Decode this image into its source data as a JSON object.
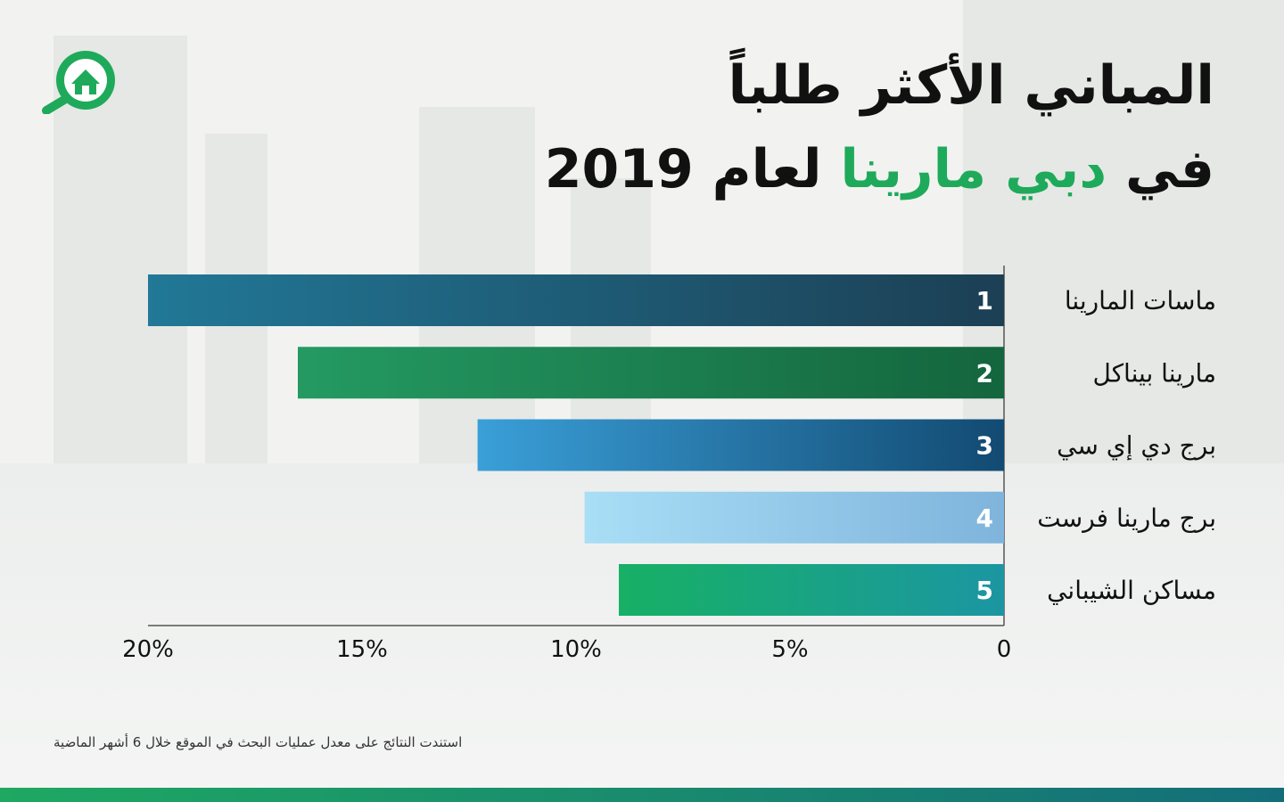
{
  "title": {
    "line1": "المباني الأكثر طلباً",
    "line2_prefix": "في",
    "line2_accent": "دبي مارينا",
    "line2_suffix": "لعام 2019"
  },
  "logo": {
    "icon": "home-search-icon",
    "color": "#1eaa5a"
  },
  "footnote": "استندت النتائج على معدل عمليات البحث في الموقع خلال 6 أشهر الماضية",
  "colors": {
    "accent": "#1eaa5a",
    "bottom_bar_start": "#1ea862",
    "bottom_bar_end": "#146e7a"
  },
  "chart_data": {
    "type": "bar",
    "orientation": "horizontal",
    "direction": "right-to-left",
    "title": "المباني الأكثر طلباً في دبي مارينا لعام 2019",
    "xlabel": "",
    "ylabel": "",
    "xlim": [
      0,
      20
    ],
    "unit": "%",
    "categories": [
      "ماسات المارينا",
      "مارينا بيناكل",
      "برج دي إي سي",
      "برج مارينا فرست",
      "مساكن الشيباني"
    ],
    "ranks": [
      "1",
      "2",
      "3",
      "4",
      "5"
    ],
    "values": [
      20,
      16.5,
      12.3,
      9.8,
      9.0
    ],
    "bar_colors": [
      [
        "#217897",
        "#1c3f54"
      ],
      [
        "#249a62",
        "#14653d"
      ],
      [
        "#3a9fd8",
        "#124a72"
      ],
      [
        "#a9def6",
        "#7fb4dc"
      ],
      [
        "#17b065",
        "#1b96a2"
      ]
    ],
    "tick_labels": [
      "20%",
      "15%",
      "10%",
      "5%",
      "0"
    ],
    "tick_values": [
      20,
      15,
      10,
      5,
      0
    ],
    "grid": false
  }
}
